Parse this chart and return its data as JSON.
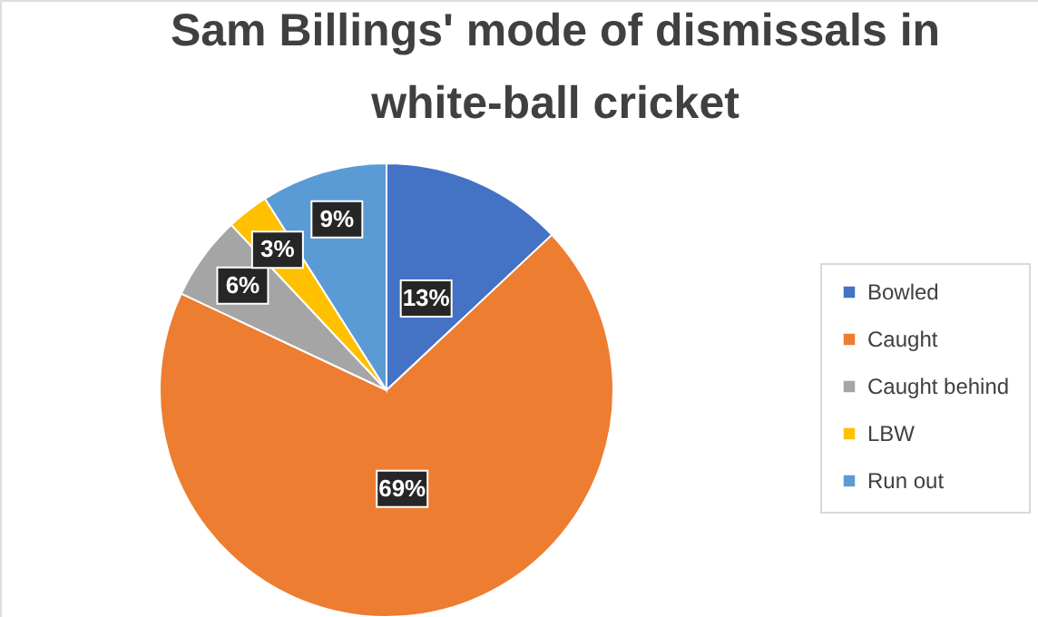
{
  "chart_data": {
    "type": "pie",
    "title": "Sam Billings' mode of dismissals in white-ball cricket",
    "categories": [
      "Bowled",
      "Caught",
      "Caught behind",
      "LBW",
      "Run out"
    ],
    "values": [
      13,
      69,
      6,
      3,
      9
    ],
    "colors": [
      "#4472c4",
      "#ed7d31",
      "#a5a5a5",
      "#ffc000",
      "#5b9bd5"
    ],
    "value_labels": [
      "13%",
      "69%",
      "6%",
      "3%",
      "9%"
    ],
    "legend": "right"
  }
}
